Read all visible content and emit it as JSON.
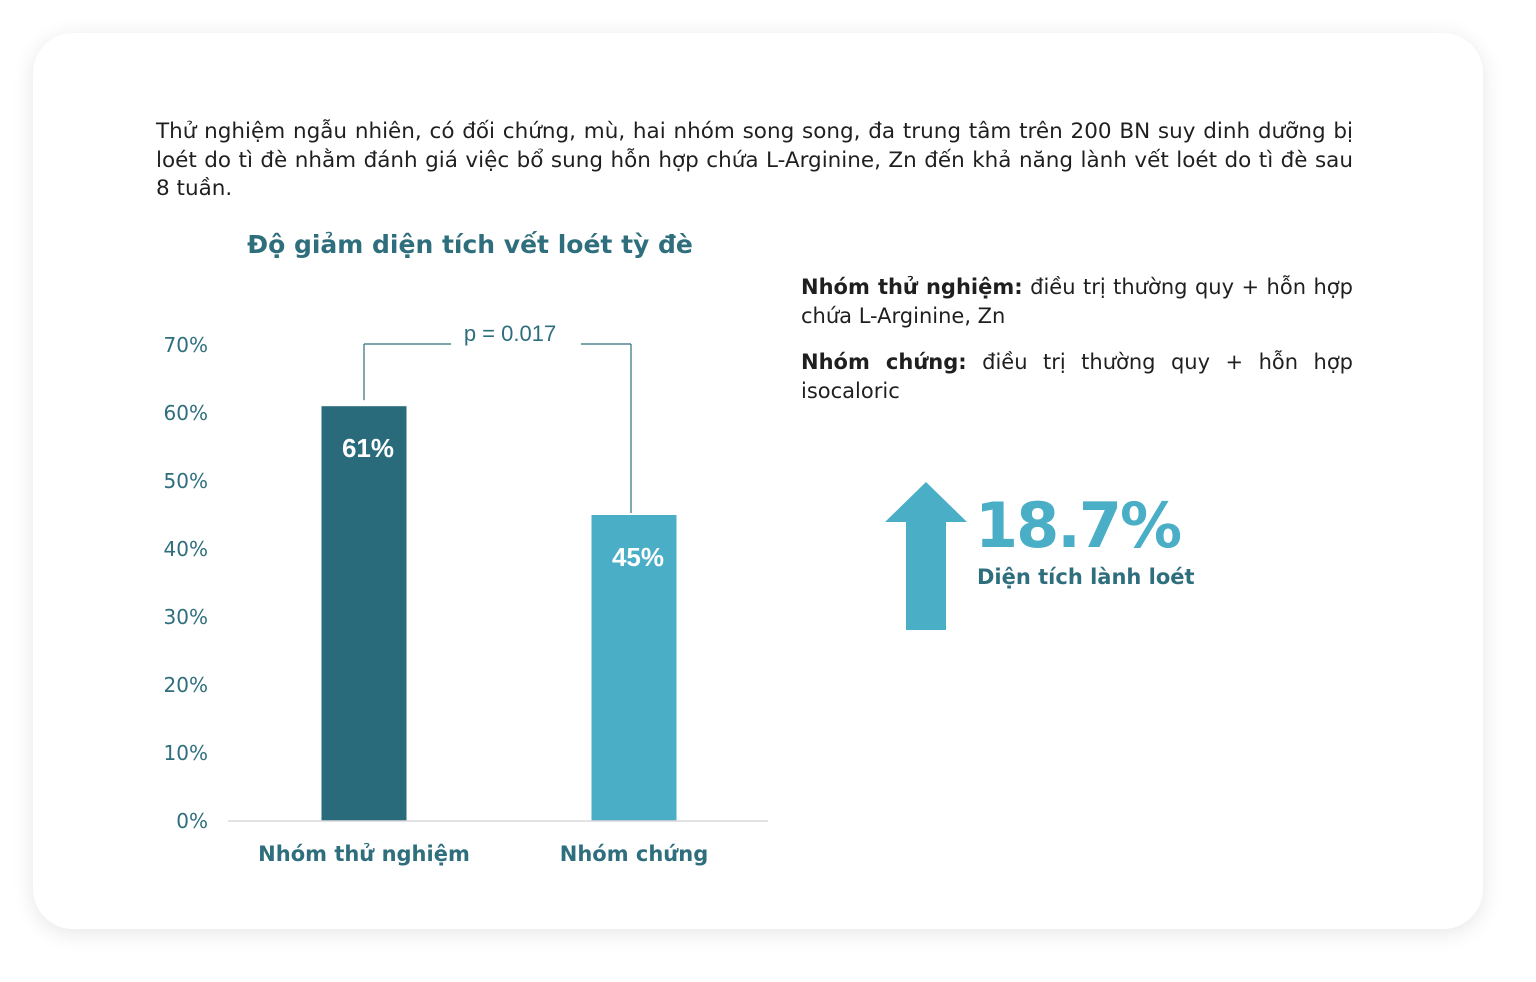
{
  "intro": {
    "text": "Thử nghiệm ngẫu nhiên, có đối chứng, mù, hai nhóm song song, đa trung tâm trên 200 BN suy dinh dưỡng bị loét do tì đè nhằm đánh giá việc bổ sung hỗn hợp chứa L-Arginine, Zn đến khả năng lành vết loét do tì đè sau 8 tuần."
  },
  "legend": {
    "group1_label": "Nhóm thử nghiệm:",
    "group1_text": "điều trị thường quy + hỗn hợp chứa L-Arginine, Zn",
    "group2_label": "Nhóm chứng:",
    "group2_text": "điều trị thường quy + hỗn hợp isocaloric"
  },
  "highlight": {
    "value": "18.7%",
    "label": "Diện tích lành loét",
    "arrow_icon": "arrow-up-icon",
    "arrow_color": "#4aaec7"
  },
  "chart_data": {
    "type": "bar",
    "title": "Độ giảm diện tích vết loét tỳ đè",
    "categories": [
      "Nhóm thử nghiệm",
      "Nhóm chứng"
    ],
    "values": [
      61,
      45
    ],
    "value_labels": [
      "61%",
      "45%"
    ],
    "colors": [
      "#2a6b7b",
      "#4aaec7"
    ],
    "ylim": [
      0,
      70
    ],
    "yticks": [
      0,
      10,
      20,
      30,
      40,
      50,
      60,
      70
    ],
    "ytick_labels": [
      "0%",
      "10%",
      "20%",
      "30%",
      "40%",
      "50%",
      "60%",
      "70%"
    ],
    "grid": false,
    "annotation": "p = 0.017"
  }
}
